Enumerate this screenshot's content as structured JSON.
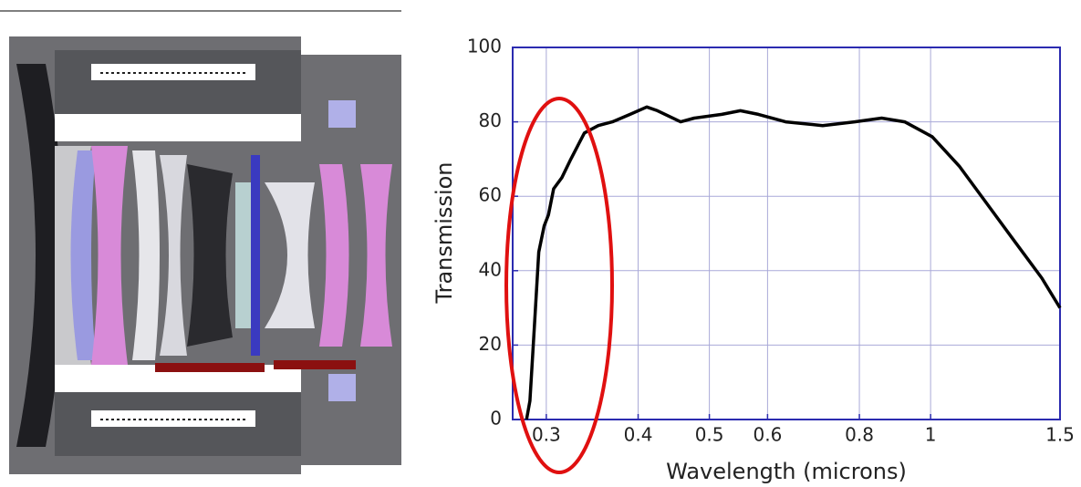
{
  "chart_data": {
    "type": "line",
    "x_label": "Wavelength (microns)",
    "y_label": "Transmission",
    "x": [
      0.282,
      0.285,
      0.289,
      0.293,
      0.298,
      0.302,
      0.307,
      0.315,
      0.324,
      0.338,
      0.353,
      0.369,
      0.39,
      0.411,
      0.425,
      0.457,
      0.477,
      0.52,
      0.551,
      0.583,
      0.635,
      0.713,
      0.788,
      0.858,
      0.922,
      1.005,
      1.095,
      1.193,
      1.3,
      1.417,
      1.5
    ],
    "series": [
      {
        "color": "#000000",
        "values": [
          0,
          5,
          25,
          45,
          52,
          55,
          62,
          65,
          70,
          77,
          79,
          80,
          82,
          84,
          83,
          80,
          81,
          82,
          83,
          82,
          80,
          79,
          80,
          81,
          80,
          76,
          68,
          58,
          48,
          38,
          30
        ]
      }
    ],
    "xlim": [
      0.27,
      1.5
    ],
    "ylim": [
      0,
      100
    ],
    "xticks": [
      0.3,
      0.4,
      0.5,
      0.6,
      0.8,
      1,
      1.5
    ],
    "yticks": [
      0,
      20,
      40,
      60,
      80,
      100
    ],
    "xscale": "log",
    "grid": true,
    "frame_color": "#2b2bb0",
    "grid_color": "#a9a9d8"
  }
}
